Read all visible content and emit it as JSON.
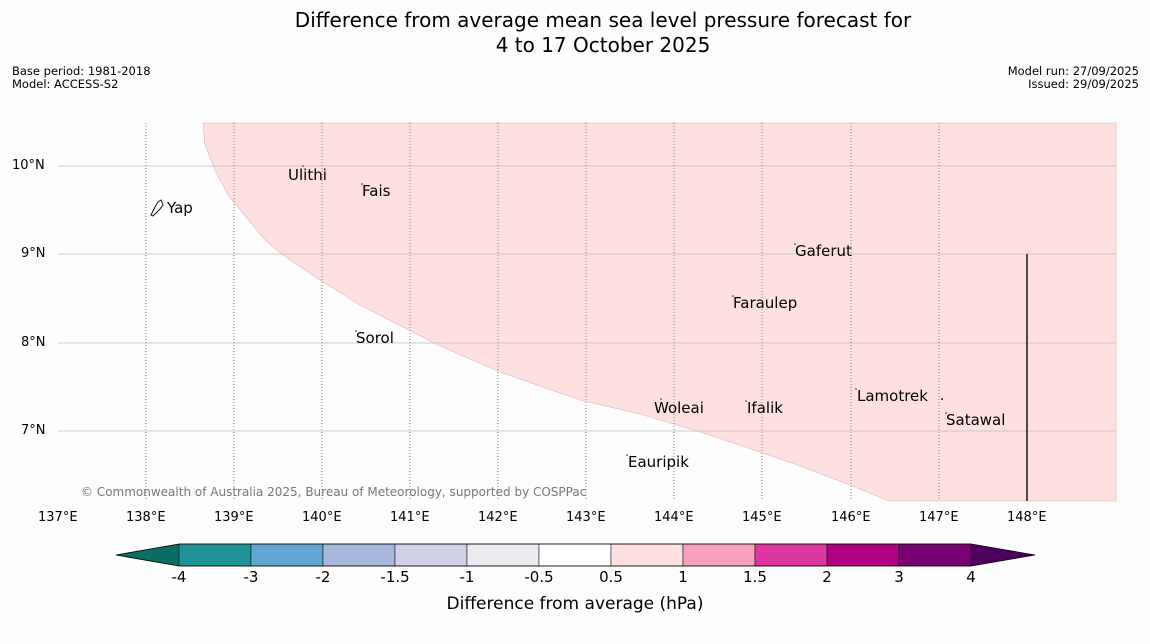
{
  "header": {
    "title_line1": "Difference from average mean sea level pressure forecast for",
    "title_line2": "4 to 17 October 2025",
    "base_period": "Base period: 1981-2018",
    "model": "Model: ACCESS-S2",
    "model_run": "Model run: 27/09/2025",
    "issued": "Issued: 29/09/2025"
  },
  "map": {
    "lat_labels": [
      "10°N",
      "9°N",
      "8°N",
      "7°N"
    ],
    "lon_labels": [
      "137°E",
      "138°E",
      "139°E",
      "140°E",
      "141°E",
      "142°E",
      "143°E",
      "144°E",
      "145°E",
      "146°E",
      "147°E",
      "148°E"
    ],
    "places": [
      "Yap",
      "Ulithi",
      "Fais",
      "Gaferut",
      "Faraulep",
      "Sorol",
      "Woleai",
      "Ifalik",
      "Lamotrek",
      "Satawal",
      "Eauripik"
    ],
    "shaded_class": "0.5 to 1",
    "shaded_color": "#fde0df",
    "copyright": "© Commonwealth of Australia 2025, Bureau of Meteorology, supported by COSPPac"
  },
  "colorbar": {
    "ticks": [
      "-4",
      "-3",
      "-2",
      "-1.5",
      "-1",
      "-0.5",
      "0.5",
      "1",
      "1.5",
      "2",
      "3",
      "4"
    ],
    "colors": [
      "#0b6e63",
      "#1f9396",
      "#62a6d1",
      "#a6b9dd",
      "#d0d0e7",
      "#ecebef",
      "#ffffff",
      "#fde0df",
      "#f9a0bd",
      "#de37a1",
      "#af0181",
      "#7a0175",
      "#4b0060"
    ],
    "label": "Difference from average (hPa)"
  }
}
